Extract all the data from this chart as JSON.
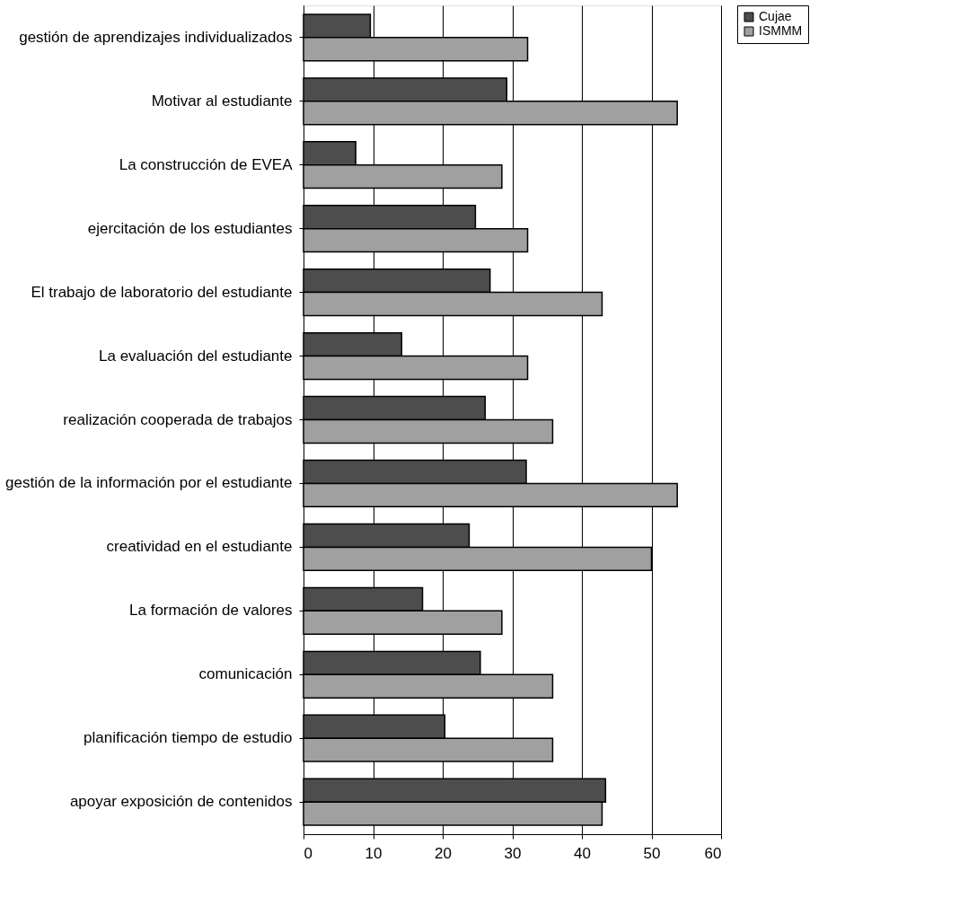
{
  "chart_data": {
    "type": "bar",
    "orientation": "horizontal",
    "categories": [
      "gestión de aprendizajes individualizados",
      "Motivar al estudiante",
      "La construcción de EVEA",
      "ejercitación de los estudiantes",
      "El trabajo de laboratorio del estudiante",
      "La evaluación del estudiante",
      "realización cooperada de trabajos",
      "gestión de la información por el estudiante",
      "creatividad en el estudiante",
      "La formación de valores",
      "comunicación",
      "planificación tiempo de estudio",
      "apoyar exposición de contenidos"
    ],
    "series": [
      {
        "name": "Cujae",
        "color": "#4d4d4d",
        "values": [
          9.6,
          29.2,
          7.5,
          24.7,
          26.8,
          14.1,
          26.1,
          32.0,
          23.8,
          17.1,
          25.4,
          20.3,
          43.4
        ]
      },
      {
        "name": "ISMMM",
        "color": "#a0a0a0",
        "values": [
          32.2,
          53.7,
          28.5,
          32.2,
          42.9,
          32.2,
          35.8,
          53.7,
          50.0,
          28.5,
          35.8,
          35.8,
          42.9
        ]
      }
    ],
    "xlim": [
      0,
      60
    ],
    "xticks": [
      0,
      10,
      20,
      30,
      40,
      50,
      60
    ],
    "grid": "x",
    "legend": "right"
  }
}
